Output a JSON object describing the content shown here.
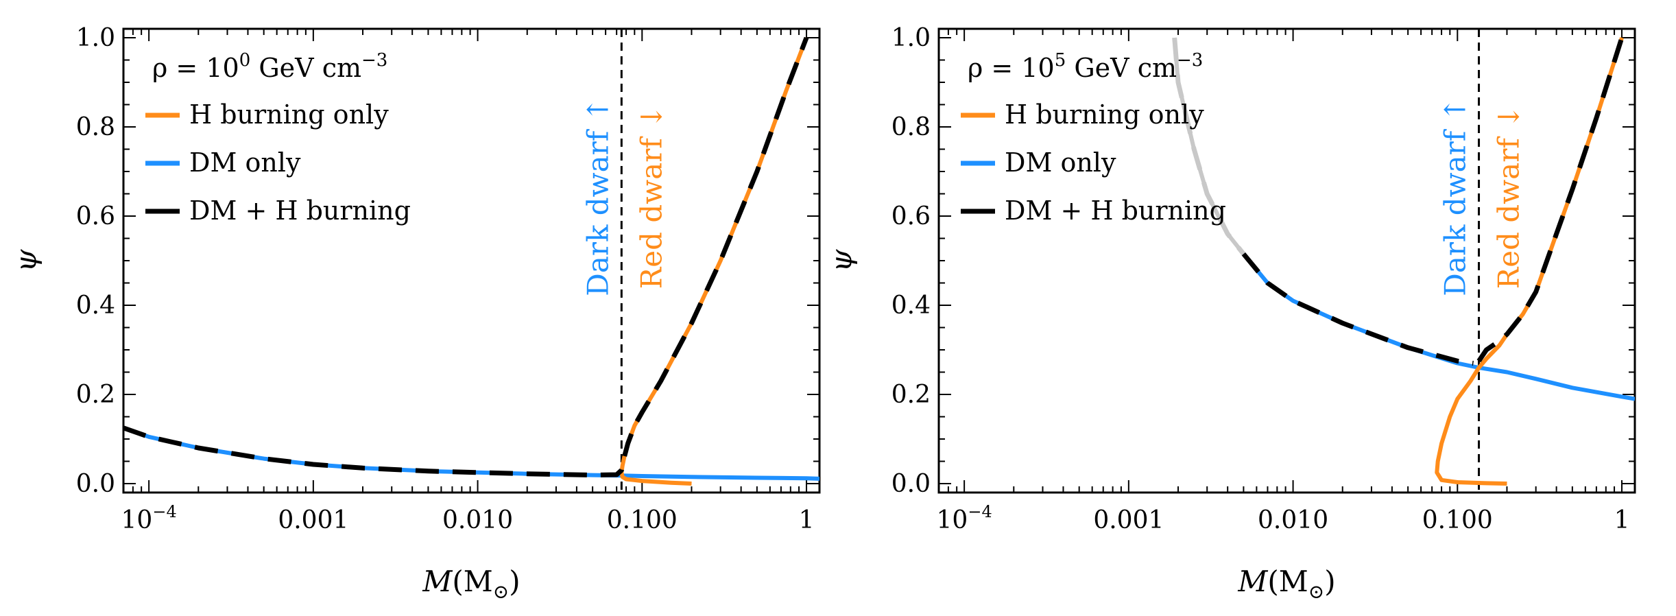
{
  "colors": {
    "h_burning": "#FF8C1A",
    "dm_only": "#1E90FF",
    "combined": "#000000",
    "dark_dwarf": "#1E90FF",
    "red_dwarf": "#FF8C1A",
    "faded": "#C8C8C8"
  },
  "chart_data": [
    {
      "type": "line",
      "ylabel": "ψ",
      "xlabel_main": "M",
      "xlabel_unit": "(M",
      "xlabel_sub": "⊙",
      "xlabel_close": ")",
      "xscale": "log",
      "xlim": [
        7e-05,
        1.2
      ],
      "ylim": [
        -0.02,
        1.02
      ],
      "xticks": [
        {
          "v": 0.0001,
          "base": "10",
          "exp": "−4"
        },
        {
          "v": 0.001,
          "label": "0.001"
        },
        {
          "v": 0.01,
          "label": "0.010"
        },
        {
          "v": 0.1,
          "label": "0.100"
        },
        {
          "v": 1,
          "label": "1"
        }
      ],
      "yticks": [
        {
          "v": 0.0,
          "label": "0.0"
        },
        {
          "v": 0.2,
          "label": "0.2"
        },
        {
          "v": 0.4,
          "label": "0.4"
        },
        {
          "v": 0.6,
          "label": "0.6"
        },
        {
          "v": 0.8,
          "label": "0.8"
        },
        {
          "v": 1.0,
          "label": "1.0"
        }
      ],
      "density": {
        "prefix": "ρ = 10",
        "exp": "0",
        "unit": " GeV cm",
        "unit_exp": "−3"
      },
      "legend": [
        "H burning only",
        "DM only",
        "DM + H burning"
      ],
      "legend_position": "top-left",
      "boundary_mass": 0.075,
      "dark_dwarf_label": "Dark dwarf ↑",
      "red_dwarf_label": "Red dwarf ↓",
      "series": [
        {
          "name": "DM only",
          "color_key": "dm_only",
          "points": [
            [
              7e-05,
              0.125
            ],
            [
              0.0001,
              0.105
            ],
            [
              0.0002,
              0.08
            ],
            [
              0.0005,
              0.056
            ],
            [
              0.001,
              0.043
            ],
            [
              0.002,
              0.035
            ],
            [
              0.005,
              0.028
            ],
            [
              0.01,
              0.025
            ],
            [
              0.02,
              0.022
            ],
            [
              0.05,
              0.019
            ],
            [
              0.075,
              0.018
            ],
            [
              0.1,
              0.017
            ],
            [
              0.2,
              0.015
            ],
            [
              0.5,
              0.013
            ],
            [
              1,
              0.012
            ],
            [
              1.2,
              0.011
            ]
          ]
        },
        {
          "name": "H burning only",
          "color_key": "h_burning",
          "points": [
            [
              0.2,
              0.0
            ],
            [
              0.15,
              0.002
            ],
            [
              0.1,
              0.006
            ],
            [
              0.08,
              0.01
            ],
            [
              0.076,
              0.015
            ],
            [
              0.075,
              0.025
            ],
            [
              0.076,
              0.04
            ],
            [
              0.078,
              0.06
            ],
            [
              0.082,
              0.09
            ],
            [
              0.09,
              0.13
            ],
            [
              0.1,
              0.16
            ],
            [
              0.13,
              0.23
            ],
            [
              0.2,
              0.36
            ],
            [
              0.3,
              0.5
            ],
            [
              0.5,
              0.7
            ],
            [
              0.75,
              0.88
            ],
            [
              1.0,
              1.0
            ]
          ]
        },
        {
          "name": "DM + H burning",
          "color_key": "combined",
          "dashed": true,
          "points": [
            [
              7e-05,
              0.125
            ],
            [
              0.0001,
              0.105
            ],
            [
              0.0002,
              0.08
            ],
            [
              0.0005,
              0.056
            ],
            [
              0.001,
              0.043
            ],
            [
              0.002,
              0.035
            ],
            [
              0.005,
              0.028
            ],
            [
              0.01,
              0.025
            ],
            [
              0.02,
              0.022
            ],
            [
              0.05,
              0.019
            ],
            [
              0.07,
              0.02
            ],
            [
              0.075,
              0.03
            ],
            [
              0.076,
              0.04
            ],
            [
              0.078,
              0.06
            ],
            [
              0.082,
              0.09
            ],
            [
              0.09,
              0.13
            ],
            [
              0.1,
              0.16
            ],
            [
              0.13,
              0.23
            ],
            [
              0.2,
              0.36
            ],
            [
              0.3,
              0.5
            ],
            [
              0.5,
              0.7
            ],
            [
              0.75,
              0.88
            ],
            [
              1.0,
              1.0
            ]
          ]
        }
      ]
    },
    {
      "type": "line",
      "ylabel": "ψ",
      "xlabel_main": "M",
      "xlabel_unit": "(M",
      "xlabel_sub": "⊙",
      "xlabel_close": ")",
      "xscale": "log",
      "xlim": [
        7e-05,
        1.2
      ],
      "ylim": [
        -0.02,
        1.02
      ],
      "xticks": [
        {
          "v": 0.0001,
          "base": "10",
          "exp": "−4"
        },
        {
          "v": 0.001,
          "label": "0.001"
        },
        {
          "v": 0.01,
          "label": "0.010"
        },
        {
          "v": 0.1,
          "label": "0.100"
        },
        {
          "v": 1,
          "label": "1"
        }
      ],
      "yticks": [
        {
          "v": 0.0,
          "label": "0.0"
        },
        {
          "v": 0.2,
          "label": "0.2"
        },
        {
          "v": 0.4,
          "label": "0.4"
        },
        {
          "v": 0.6,
          "label": "0.6"
        },
        {
          "v": 0.8,
          "label": "0.8"
        },
        {
          "v": 1.0,
          "label": "1.0"
        }
      ],
      "density": {
        "prefix": "ρ = 10",
        "exp": "5",
        "unit": " GeV cm",
        "unit_exp": "−3"
      },
      "legend": [
        "H burning only",
        "DM only",
        "DM + H burning"
      ],
      "legend_position": "top-left",
      "boundary_mass": 0.135,
      "dark_dwarf_label": "Dark dwarf ↑",
      "red_dwarf_label": "Red dwarf ↓",
      "series": [
        {
          "name": "DM only (faded)",
          "color_key": "faded",
          "points": [
            [
              0.0019,
              1.0
            ],
            [
              0.002,
              0.9
            ],
            [
              0.0025,
              0.75
            ],
            [
              0.003,
              0.65
            ],
            [
              0.004,
              0.56
            ],
            [
              0.005,
              0.515
            ]
          ]
        },
        {
          "name": "DM only",
          "color_key": "dm_only",
          "points": [
            [
              0.005,
              0.515
            ],
            [
              0.007,
              0.45
            ],
            [
              0.01,
              0.41
            ],
            [
              0.02,
              0.36
            ],
            [
              0.05,
              0.305
            ],
            [
              0.1,
              0.27
            ],
            [
              0.135,
              0.26
            ],
            [
              0.2,
              0.25
            ],
            [
              0.3,
              0.235
            ],
            [
              0.5,
              0.215
            ],
            [
              1,
              0.195
            ],
            [
              1.2,
              0.19
            ]
          ]
        },
        {
          "name": "H burning only",
          "color_key": "h_burning",
          "points": [
            [
              0.2,
              0.0
            ],
            [
              0.15,
              0.001
            ],
            [
              0.1,
              0.003
            ],
            [
              0.08,
              0.008
            ],
            [
              0.075,
              0.025
            ],
            [
              0.076,
              0.05
            ],
            [
              0.08,
              0.09
            ],
            [
              0.09,
              0.15
            ],
            [
              0.1,
              0.19
            ],
            [
              0.12,
              0.23
            ],
            [
              0.135,
              0.26
            ],
            [
              0.15,
              0.28
            ],
            [
              0.18,
              0.31
            ],
            [
              0.2,
              0.335
            ],
            [
              0.25,
              0.38
            ],
            [
              0.3,
              0.43
            ],
            [
              0.4,
              0.56
            ],
            [
              0.5,
              0.66
            ],
            [
              0.7,
              0.82
            ],
            [
              1.0,
              1.0
            ]
          ]
        },
        {
          "name": "DM + H burning (faded)",
          "color_key": "faded",
          "dashed": true,
          "points": [
            [
              0.0019,
              1.0
            ],
            [
              0.002,
              0.9
            ],
            [
              0.0025,
              0.75
            ],
            [
              0.003,
              0.65
            ],
            [
              0.004,
              0.56
            ],
            [
              0.005,
              0.515
            ]
          ]
        },
        {
          "name": "DM + H burning",
          "color_key": "combined",
          "dashed": true,
          "points": [
            [
              0.005,
              0.515
            ],
            [
              0.007,
              0.45
            ],
            [
              0.01,
              0.41
            ],
            [
              0.02,
              0.36
            ],
            [
              0.05,
              0.305
            ],
            [
              0.1,
              0.275
            ],
            [
              0.125,
              0.27
            ]
          ]
        },
        {
          "name": "DM + H burning (upper)",
          "color_key": "combined",
          "dashed": true,
          "points": [
            [
              0.135,
              0.275
            ],
            [
              0.15,
              0.3
            ],
            [
              0.18,
              0.32
            ],
            [
              0.2,
              0.335
            ],
            [
              0.25,
              0.38
            ],
            [
              0.3,
              0.43
            ],
            [
              0.4,
              0.56
            ],
            [
              0.5,
              0.66
            ],
            [
              0.7,
              0.82
            ],
            [
              1.0,
              1.0
            ],
            [
              1.1,
              1.0
            ]
          ]
        }
      ]
    }
  ]
}
